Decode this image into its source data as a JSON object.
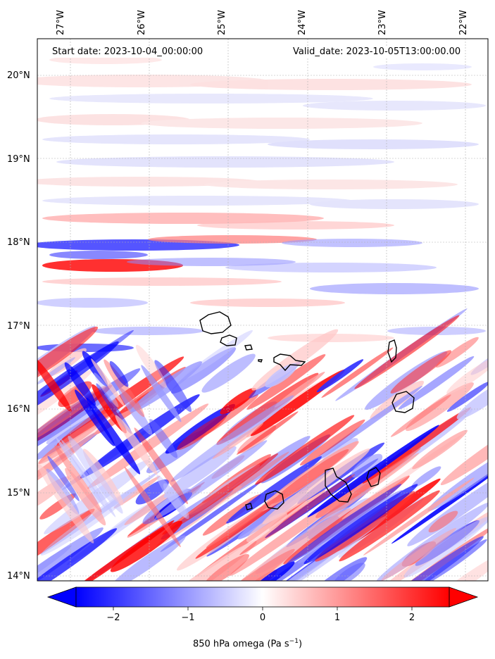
{
  "header": {
    "start_date": "Start date: 2023-10-04_00:00:00",
    "valid_date": "Valid_date: 2023-10-05T13:00:00.00"
  },
  "axes": {
    "lon_ticks": [
      "27°W",
      "26°W",
      "25°W",
      "24°W",
      "23°W",
      "22°W"
    ],
    "lat_ticks": [
      "20°N",
      "19°N",
      "18°N",
      "17°N",
      "16°N",
      "15°N",
      "14°N"
    ],
    "lon_range": [
      -27.3,
      -21.7
    ],
    "lat_range": [
      13.95,
      20.45
    ],
    "grid": true
  },
  "colorbar": {
    "ticks": [
      "−2",
      "−1",
      "0",
      "1",
      "2"
    ],
    "tick_values": [
      -2,
      -1,
      0,
      1,
      2
    ],
    "range": [
      -2.5,
      2.5
    ],
    "label_main": "850 hPa omega (Pa s",
    "label_sup": "−1",
    "label_end": ")",
    "colors": {
      "negative": "#0000ff",
      "zero": "#ffffff",
      "positive": "#ff0000"
    },
    "extend": "both"
  },
  "map": {
    "field": "850 hPa omega",
    "units": "Pa s−1",
    "islands": [
      "Santo Antão",
      "São Vicente",
      "Santa Luzia",
      "São Nicolau",
      "Sal",
      "Boa Vista",
      "Maio",
      "Santiago",
      "Fogo",
      "Brava"
    ]
  }
}
